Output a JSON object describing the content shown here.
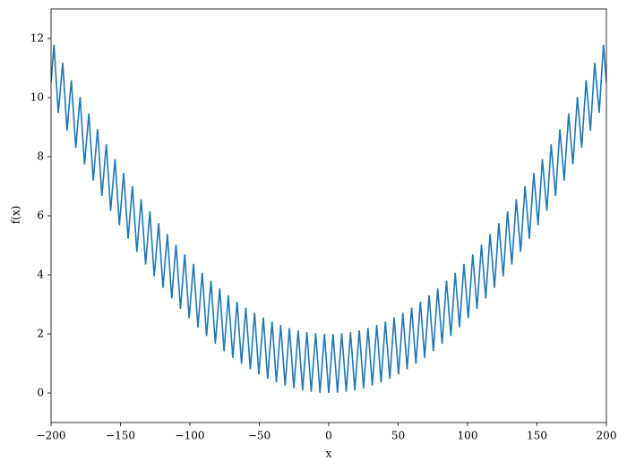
{
  "chart_data": {
    "type": "line",
    "xlabel": "x",
    "ylabel": "f(x)",
    "series": [
      {
        "color": "#1f77b4",
        "x": [
          -200,
          -197.9,
          -194.8,
          -191.6,
          -188.5,
          -185.4,
          -182.2,
          -179.1,
          -175.9,
          -172.8,
          -169.6,
          -166.5,
          -163.4,
          -160.2,
          -157.1,
          -153.9,
          -150.8,
          -147.7,
          -144.5,
          -141.4,
          -138.2,
          -135.1,
          -131.9,
          -128.8,
          -125.7,
          -122.5,
          -119.4,
          -116.2,
          -113.1,
          -110.0,
          -106.8,
          -103.7,
          -100.5,
          -97.4,
          -94.2,
          -91.1,
          -88.0,
          -84.8,
          -81.7,
          -78.5,
          -75.4,
          -72.3,
          -69.1,
          -66.0,
          -62.8,
          -59.7,
          -56.5,
          -53.4,
          -50.3,
          -47.1,
          -44.0,
          -40.8,
          -37.7,
          -34.6,
          -31.4,
          -28.3,
          -25.1,
          -22.0,
          -18.8,
          -15.7,
          -12.6,
          -9.4,
          -6.3,
          -3.1,
          0,
          3.1,
          6.3,
          9.4,
          12.6,
          15.7,
          18.8,
          22.0,
          25.1,
          28.3,
          31.4,
          34.6,
          37.7,
          40.8,
          44.0,
          47.1,
          50.3,
          53.4,
          56.5,
          59.7,
          62.8,
          66.0,
          69.1,
          72.3,
          75.4,
          78.5,
          81.7,
          84.8,
          88.0,
          91.1,
          94.2,
          97.4,
          100.5,
          103.7,
          106.8,
          110.0,
          113.1,
          116.2,
          119.4,
          122.5,
          125.7,
          128.8,
          131.9,
          135.1,
          138.2,
          141.4,
          144.5,
          147.7,
          150.8,
          153.9,
          157.1,
          160.2,
          163.4,
          166.5,
          169.6,
          172.8,
          175.9,
          179.1,
          182.2,
          185.4,
          188.5,
          191.6,
          194.8,
          197.9,
          200
        ],
        "values": [
          10.51,
          11.79,
          9.48,
          11.18,
          8.88,
          10.59,
          8.3,
          10.02,
          7.74,
          9.46,
          7.19,
          8.93,
          6.67,
          8.42,
          6.17,
          7.92,
          5.68,
          7.45,
          5.22,
          7.0,
          4.78,
          6.56,
          4.35,
          6.15,
          3.95,
          5.75,
          3.56,
          5.38,
          3.2,
          5.02,
          2.85,
          4.69,
          2.53,
          4.37,
          2.22,
          4.07,
          1.93,
          3.8,
          1.67,
          3.54,
          1.42,
          3.31,
          1.19,
          3.09,
          0.99,
          2.89,
          0.8,
          2.71,
          0.63,
          2.56,
          0.48,
          2.42,
          0.36,
          2.3,
          0.25,
          2.2,
          0.16,
          2.12,
          0.09,
          2.06,
          0.04,
          2.02,
          0.01,
          2.0,
          0,
          2.0,
          0.01,
          2.02,
          0.04,
          2.06,
          0.09,
          2.12,
          0.16,
          2.2,
          0.25,
          2.3,
          0.36,
          2.42,
          0.48,
          2.56,
          0.63,
          2.71,
          0.8,
          2.89,
          0.99,
          3.09,
          1.19,
          3.31,
          1.42,
          3.54,
          1.67,
          3.8,
          1.93,
          4.07,
          2.22,
          4.37,
          2.53,
          4.69,
          2.85,
          5.02,
          3.2,
          5.38,
          3.56,
          5.75,
          3.95,
          6.15,
          4.35,
          6.56,
          4.78,
          7.0,
          5.22,
          7.45,
          5.68,
          7.92,
          6.17,
          8.42,
          6.67,
          8.93,
          7.19,
          9.46,
          7.74,
          10.02,
          8.3,
          10.59,
          8.88,
          11.18,
          9.48,
          11.79,
          10.51
        ]
      }
    ],
    "xlim": [
      -200,
      200
    ],
    "xticks": [
      {
        "value": -200,
        "label": "−200"
      },
      {
        "value": -150,
        "label": "−150"
      },
      {
        "value": -100,
        "label": "−100"
      },
      {
        "value": -50,
        "label": "−50"
      },
      0,
      50,
      100,
      150,
      200
    ],
    "ylim": [
      -1,
      13
    ],
    "yticks": [
      0,
      2,
      4,
      6,
      8,
      10,
      12
    ],
    "grid": false
  }
}
